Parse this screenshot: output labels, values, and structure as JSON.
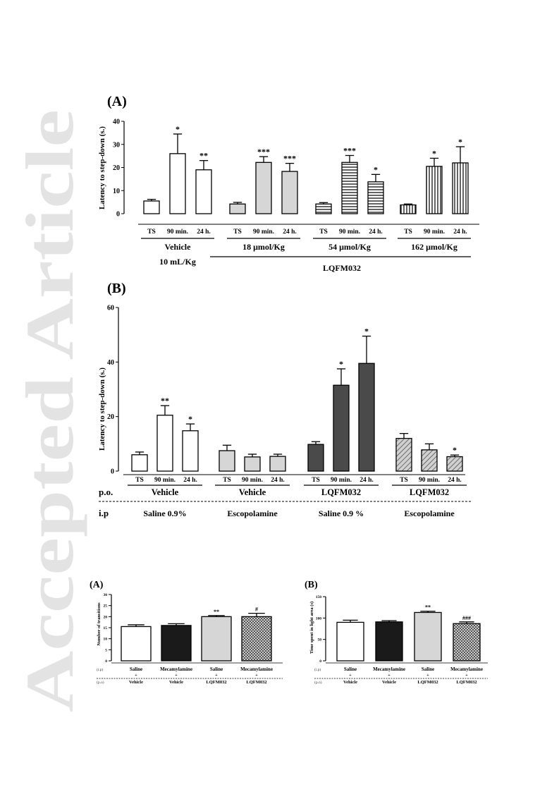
{
  "watermark": {
    "text": "Accepted Article",
    "color": "#e3e3e3"
  },
  "chart_data": [
    {
      "type": "bar",
      "panel_label": "(A)",
      "ylabel": "Latency to step-down (s.)",
      "ylim": [
        0,
        40
      ],
      "yticks": [
        0,
        10,
        20,
        30,
        40
      ],
      "groups": [
        {
          "name": "Vehicle",
          "sublabel": "10 mL/Kg",
          "pattern": "white",
          "bars": [
            {
              "label": "TS",
              "value": 5.5,
              "error": 0.7,
              "sig": ""
            },
            {
              "label": "90 min.",
              "value": 26,
              "error": 8.5,
              "sig": "*"
            },
            {
              "label": "24 h.",
              "value": 19,
              "error": 4,
              "sig": "**"
            }
          ]
        },
        {
          "name": "18 μmol/Kg",
          "sublabel": "",
          "pattern": "gray",
          "bars": [
            {
              "label": "TS",
              "value": 4.2,
              "error": 0.7,
              "sig": ""
            },
            {
              "label": "90 min.",
              "value": 22.2,
              "error": 2.5,
              "sig": "***"
            },
            {
              "label": "24 h.",
              "value": 18.3,
              "error": 3.5,
              "sig": "***"
            }
          ]
        },
        {
          "name": "54 μmol/Kg",
          "sublabel": "",
          "pattern": "hlines",
          "bars": [
            {
              "label": "TS",
              "value": 4.2,
              "error": 0.6,
              "sig": ""
            },
            {
              "label": "90 min.",
              "value": 22.2,
              "error": 3,
              "sig": "***"
            },
            {
              "label": "24 h.",
              "value": 13.8,
              "error": 3.2,
              "sig": "*"
            }
          ]
        },
        {
          "name": "162 μmol/Kg",
          "sublabel": "",
          "pattern": "vlines",
          "bars": [
            {
              "label": "TS",
              "value": 3.8,
              "error": 0.4,
              "sig": ""
            },
            {
              "label": "90 min.",
              "value": 20.5,
              "error": 3.5,
              "sig": "*"
            },
            {
              "label": "24 h.",
              "value": 22,
              "error": 7,
              "sig": "*"
            }
          ]
        }
      ],
      "compound_label": "LQFM032"
    },
    {
      "type": "bar",
      "panel_label": "(B)",
      "ylabel": "Latency to step-down (s.)",
      "ylim": [
        0,
        60
      ],
      "yticks": [
        0,
        20,
        40,
        60
      ],
      "row_labels": {
        "po": "p.o.",
        "ip": "i.p"
      },
      "groups": [
        {
          "po": "Vehicle",
          "ip": "Saline 0.9%",
          "pattern": "white",
          "bars": [
            {
              "label": "TS",
              "value": 6,
              "error": 1,
              "sig": ""
            },
            {
              "label": "90 min.",
              "value": 20.5,
              "error": 3.5,
              "sig": "**"
            },
            {
              "label": "24 h.",
              "value": 14.8,
              "error": 2.5,
              "sig": "*"
            }
          ]
        },
        {
          "po": "Vehicle",
          "ip": "Escopolamine",
          "pattern": "gray",
          "bars": [
            {
              "label": "TS",
              "value": 7.5,
              "error": 2,
              "sig": ""
            },
            {
              "label": "90 min.",
              "value": 5.2,
              "error": 1,
              "sig": ""
            },
            {
              "label": "24 h.",
              "value": 5.4,
              "error": 0.8,
              "sig": ""
            }
          ]
        },
        {
          "po": "LQFM032",
          "ip": "Saline 0.9 %",
          "pattern": "dark",
          "bars": [
            {
              "label": "TS",
              "value": 9.8,
              "error": 1,
              "sig": ""
            },
            {
              "label": "90 min.",
              "value": 31.5,
              "error": 6,
              "sig": "*"
            },
            {
              "label": "24 h.",
              "value": 39.5,
              "error": 10,
              "sig": "*"
            }
          ]
        },
        {
          "po": "LQFM032",
          "ip": "Escopolamine",
          "pattern": "diag",
          "bars": [
            {
              "label": "TS",
              "value": 12,
              "error": 1.8,
              "sig": ""
            },
            {
              "label": "90 min.",
              "value": 7.8,
              "error": 2.2,
              "sig": ""
            },
            {
              "label": "24 h.",
              "value": 5.3,
              "error": 0.6,
              "sig": "*"
            }
          ]
        }
      ]
    },
    {
      "type": "bar",
      "panel_label": "(A)",
      "ylabel": "Number of transitions",
      "ylim": [
        0,
        30
      ],
      "yticks": [
        0,
        5,
        10,
        15,
        20,
        25,
        30
      ],
      "row_labels": {
        "ip": "(i.p)",
        "po": "(p.o)"
      },
      "plus": "+",
      "bars": [
        {
          "ip": "Saline",
          "po": "Vehicle",
          "value": 15.5,
          "error": 0.8,
          "sig": "",
          "pattern": "white"
        },
        {
          "ip": "Mecamylamine",
          "po": "Vehicle",
          "value": 16,
          "error": 0.8,
          "sig": "",
          "pattern": "black"
        },
        {
          "ip": "Saline",
          "po": "LQFM032",
          "value": 20,
          "error": 0.5,
          "sig": "**",
          "pattern": "gray"
        },
        {
          "ip": "Mecamylamine",
          "po": "LQFM032",
          "value": 20,
          "error": 1.5,
          "sig": "#",
          "pattern": "checker"
        }
      ]
    },
    {
      "type": "bar",
      "panel_label": "(B)",
      "ylabel": "Time spent in light area (s)",
      "ylim": [
        0,
        150
      ],
      "yticks": [
        0,
        50,
        100,
        150
      ],
      "row_labels": {
        "ip": "(i.p)",
        "po": "(p.o)"
      },
      "plus": "+",
      "bars": [
        {
          "ip": "Saline",
          "po": "Vehicle",
          "value": 90,
          "error": 5,
          "sig": "",
          "pattern": "white"
        },
        {
          "ip": "Mecamylamine",
          "po": "Vehicle",
          "value": 91,
          "error": 3,
          "sig": "",
          "pattern": "black"
        },
        {
          "ip": "Saline",
          "po": "LQFM032",
          "value": 113,
          "error": 3,
          "sig": "**",
          "pattern": "gray"
        },
        {
          "ip": "Mecamylamine",
          "po": "LQFM032",
          "value": 87,
          "error": 4,
          "sig": "###",
          "pattern": "checker"
        }
      ]
    }
  ]
}
